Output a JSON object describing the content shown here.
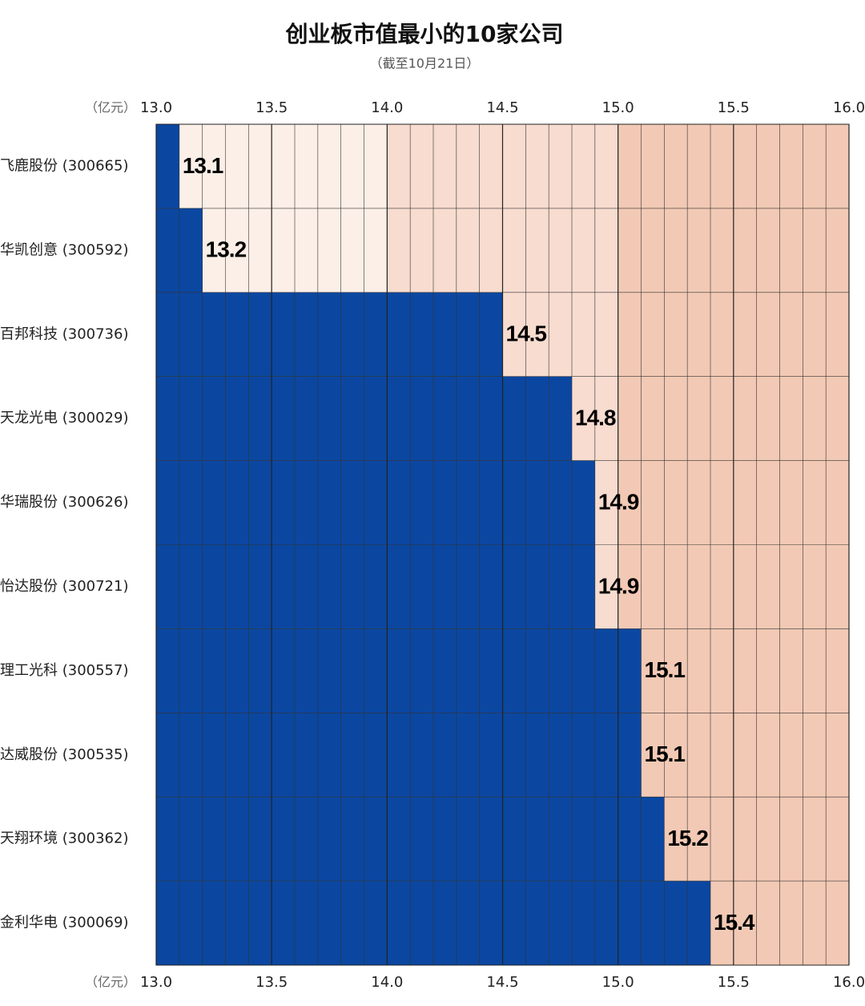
{
  "chart_data": {
    "type": "bar",
    "orientation": "horizontal",
    "title": "创业板市值最小的10家公司",
    "subtitle": "（截至10月21日）",
    "x_unit": "（亿元）",
    "categories": [
      "飞鹿股份 (300665)",
      "华凯创意 (300592)",
      "百邦科技 (300736)",
      "天龙光电 (300029)",
      "华瑞股份 (300626)",
      "怡达股份 (300721)",
      "理工光科 (300557)",
      "达威股份 (300535)",
      "天翔环境 (300362)",
      "金利华电 (300069)"
    ],
    "values": [
      13.1,
      13.2,
      14.5,
      14.8,
      14.9,
      14.9,
      15.1,
      15.1,
      15.2,
      15.4
    ],
    "color": "#0b47a1",
    "xlim": [
      13.0,
      16.0
    ],
    "xticks": [
      {
        "value": 13,
        "label": "13.0"
      },
      {
        "value": 13.5,
        "label": "13.5"
      },
      {
        "value": 14,
        "label": "14.0"
      },
      {
        "value": 14.5,
        "label": "14.5"
      },
      {
        "value": 15,
        "label": "15.0"
      },
      {
        "value": 15.5,
        "label": "15.5"
      },
      {
        "value": 16,
        "label": "16.0"
      }
    ],
    "grid": true
  }
}
